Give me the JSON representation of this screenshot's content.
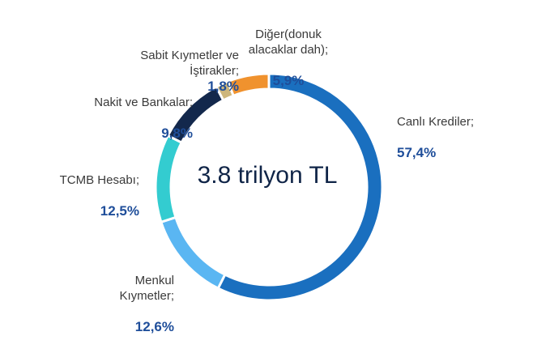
{
  "chart_data": {
    "type": "donut",
    "title": "3.8 trilyon TL",
    "categories": [
      "Canlı Krediler;",
      "Menkul\nKıymetler;",
      "TCMB Hesabı;",
      "Nakit ve Bankalar;",
      "Sabit Kıymetler ve\nİştirakler;",
      "Diğer(donuk\nalacaklar dah);"
    ],
    "values": [
      57.4,
      12.6,
      12.5,
      9.8,
      1.8,
      5.9
    ],
    "value_labels": [
      "57,4%",
      "12,6%",
      "12,5%",
      "9,8%",
      "1,8%",
      "5,9%"
    ],
    "colors": [
      "#1a6fbf",
      "#5ab6f2",
      "#33ccd0",
      "#13284c",
      "#cdb67c",
      "#f0922e"
    ]
  }
}
